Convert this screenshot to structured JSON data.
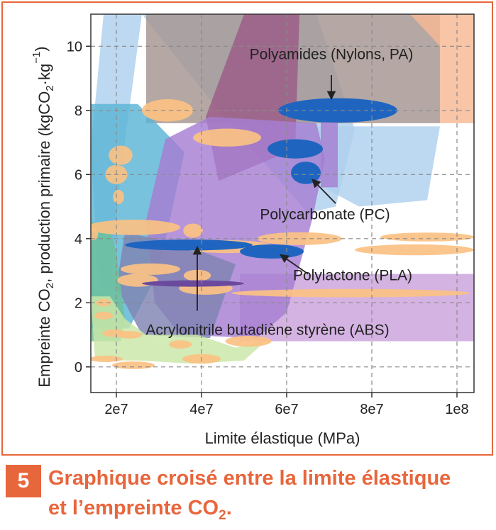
{
  "chart_data": {
    "type": "scatter",
    "xlabel": "Limite élastique (MPa)",
    "ylabel_parts": [
      "Empreinte CO",
      "2",
      ", production primaire (kgCO",
      "2",
      "·kg",
      "−1",
      ")"
    ],
    "xlim": [
      14000000,
      104000000
    ],
    "ylim": [
      -0.8,
      11.0
    ],
    "x_ticks": [
      {
        "value": 20000000,
        "label": "2e7"
      },
      {
        "value": 40000000,
        "label": "4e7"
      },
      {
        "value": 60000000,
        "label": "6e7"
      },
      {
        "value": 80000000,
        "label": "8e7"
      },
      {
        "value": 100000000,
        "label": "1e8"
      }
    ],
    "y_ticks": [
      {
        "value": 0,
        "label": "0"
      },
      {
        "value": 2,
        "label": "2"
      },
      {
        "value": 4,
        "label": "4"
      },
      {
        "value": 6,
        "label": "6"
      },
      {
        "value": 8,
        "label": "8"
      },
      {
        "value": 10,
        "label": "10"
      }
    ],
    "grid": true,
    "colors": {
      "sky": "#aed0ee",
      "teal": "#5bb5d5",
      "mauve": "#9b5b88",
      "taupe": "#a59590",
      "salmon": "#f6b894",
      "purple": "#a67ed2",
      "lavender": "#cba2dc",
      "green": "#6cc198",
      "lightgreen": "#c9e6a6",
      "orange": "#fbc183",
      "blue": "#1f65c0",
      "darkpurple": "#6b4a9e",
      "slate": "#7f84b2"
    },
    "regions": [
      {
        "color": "sky",
        "points": [
          [
            20000000,
            11.0
          ],
          [
            67000000,
            11.0
          ],
          [
            72000000,
            9.0
          ],
          [
            76000000,
            7.4
          ],
          [
            71500000,
            5.0
          ],
          [
            65000000,
            4.8
          ],
          [
            44000000,
            8.0
          ],
          [
            26000000,
            11.0
          ]
        ]
      },
      {
        "color": "sky",
        "points": [
          [
            17000000,
            11.0
          ],
          [
            26000000,
            11.0
          ],
          [
            21000000,
            6.0
          ],
          [
            18500000,
            2.5
          ],
          [
            16000000,
            2.5
          ],
          [
            14000000,
            6.8
          ]
        ]
      },
      {
        "color": "sky",
        "points": [
          [
            59000000,
            7.5
          ],
          [
            96000000,
            7.5
          ],
          [
            93000000,
            5.2
          ],
          [
            77000000,
            5.0
          ],
          [
            63000000,
            6.0
          ]
        ]
      },
      {
        "color": "taupe",
        "points": [
          [
            27000000,
            11.0
          ],
          [
            96000000,
            11.0
          ],
          [
            96000000,
            7.6
          ],
          [
            27000000,
            7.6
          ]
        ]
      },
      {
        "color": "mauve",
        "points": [
          [
            50000000,
            11.0
          ],
          [
            63000000,
            11.0
          ],
          [
            62000000,
            6.8
          ],
          [
            44000000,
            5.8
          ],
          [
            41000000,
            7.8
          ]
        ]
      },
      {
        "color": "salmon",
        "points": [
          [
            89000000,
            11.0
          ],
          [
            104000000,
            11.0
          ],
          [
            104000000,
            7.6
          ],
          [
            96000000,
            7.6
          ],
          [
            96000000,
            10.0
          ]
        ]
      },
      {
        "color": "lavender",
        "points": [
          [
            49000000,
            2.9
          ],
          [
            104000000,
            2.9
          ],
          [
            104000000,
            0.8
          ],
          [
            49000000,
            0.8
          ]
        ]
      },
      {
        "color": "teal",
        "points": [
          [
            14000000,
            8.2
          ],
          [
            25000000,
            8.2
          ],
          [
            36000000,
            6.7
          ],
          [
            30000000,
            3.0
          ],
          [
            23000000,
            1.2
          ],
          [
            14000000,
            1.2
          ]
        ]
      },
      {
        "color": "purple",
        "points": [
          [
            31500000,
            7.1
          ],
          [
            42000000,
            7.8
          ],
          [
            67000000,
            7.6
          ],
          [
            69000000,
            6.5
          ],
          [
            66000000,
            4.6
          ],
          [
            60000000,
            1.7
          ],
          [
            53000000,
            0.9
          ],
          [
            35000000,
            1.0
          ],
          [
            29000000,
            2.0
          ],
          [
            27000000,
            4.6
          ]
        ]
      },
      {
        "color": "purple",
        "points": [
          [
            68000000,
            7.9
          ],
          [
            72000000,
            7.9
          ],
          [
            72000000,
            5.6
          ],
          [
            68000000,
            5.6
          ]
        ]
      },
      {
        "color": "slate",
        "points": [
          [
            22000000,
            4.2
          ],
          [
            36000000,
            3.8
          ],
          [
            48000000,
            3.2
          ],
          [
            42000000,
            0.9
          ],
          [
            26000000,
            1.0
          ],
          [
            20000000,
            2.5
          ]
        ]
      },
      {
        "color": "green",
        "points": [
          [
            14000000,
            4.5
          ],
          [
            18000000,
            4.5
          ],
          [
            20000000,
            3.6
          ],
          [
            22000000,
            1.5
          ],
          [
            21000000,
            0.8
          ],
          [
            14000000,
            0.8
          ]
        ]
      },
      {
        "color": "lightgreen",
        "points": [
          [
            14000000,
            2.2
          ],
          [
            18500000,
            2.2
          ],
          [
            22000000,
            1.5
          ],
          [
            27000000,
            1.0
          ],
          [
            39000000,
            1.0
          ],
          [
            48000000,
            0.6
          ],
          [
            55000000,
            0.8
          ],
          [
            50000000,
            0.2
          ],
          [
            38000000,
            0.1
          ],
          [
            25000000,
            0.2
          ],
          [
            15000000,
            0.2
          ]
        ]
      }
    ],
    "series": [
      {
        "color": "orange",
        "ellipses": [
          [
            32000000,
            8.0,
            6000000,
            0.35
          ],
          [
            46000000,
            7.15,
            8000000,
            0.28
          ],
          [
            21000000,
            6.6,
            2800000,
            0.3
          ],
          [
            20000000,
            6.0,
            2600000,
            0.3
          ],
          [
            20500000,
            5.3,
            1300000,
            0.22
          ],
          [
            24000000,
            4.35,
            11000000,
            0.24
          ],
          [
            38000000,
            4.25,
            2300000,
            0.22
          ],
          [
            46000000,
            3.75,
            11000000,
            0.2
          ],
          [
            63000000,
            4.0,
            10000000,
            0.2
          ],
          [
            93000000,
            4.05,
            11000000,
            0.14
          ],
          [
            90000000,
            3.65,
            14000000,
            0.17
          ],
          [
            28000000,
            3.05,
            7000000,
            0.18
          ],
          [
            39000000,
            2.85,
            3200000,
            0.18
          ],
          [
            25000000,
            2.7,
            4800000,
            0.2
          ],
          [
            41000000,
            2.45,
            6300000,
            0.2
          ],
          [
            75000000,
            2.3,
            28000000,
            0.13
          ],
          [
            17000000,
            2.0,
            1800000,
            0.12
          ],
          [
            17000000,
            1.6,
            2200000,
            0.12
          ],
          [
            19500000,
            1.05,
            2800000,
            0.12
          ],
          [
            23000000,
            1.0,
            3000000,
            0.12
          ],
          [
            35000000,
            0.7,
            2700000,
            0.13
          ],
          [
            51000000,
            0.8,
            5400000,
            0.17
          ],
          [
            40000000,
            0.25,
            4500000,
            0.15
          ],
          [
            17500000,
            0.25,
            4000000,
            0.1
          ],
          [
            24000000,
            0.05,
            5000000,
            0.12
          ],
          [
            14500000,
            4.15,
            1200000,
            0.2
          ]
        ]
      },
      {
        "color": "darkpurple",
        "ellipses": [
          [
            38000000,
            2.6,
            12000000,
            0.1
          ]
        ]
      },
      {
        "color": "blue",
        "ellipses": [
          [
            72000000,
            8.0,
            14000000,
            0.38
          ],
          [
            62000000,
            6.8,
            6500000,
            0.3
          ],
          [
            64500000,
            6.05,
            3500000,
            0.35
          ],
          [
            37000000,
            3.8,
            15000000,
            0.17
          ],
          [
            56500000,
            3.6,
            7500000,
            0.22
          ]
        ]
      }
    ],
    "annotations": [
      {
        "text": "Polyamides (Nylons, PA)",
        "x": 70500000,
        "y": 9.6,
        "arrow_from": [
          70500000,
          9.1
        ],
        "arrow_to": [
          70500000,
          8.35
        ]
      },
      {
        "text": "Polycarbonate (PC)",
        "x": 69000000,
        "y": 4.6,
        "arrow_from": [
          71500000,
          5.1
        ],
        "arrow_to": [
          66000000,
          5.85
        ]
      },
      {
        "text": "Polylactone (PLA)",
        "x": 75500000,
        "y": 2.7,
        "arrow_from": [
          65000000,
          2.9
        ],
        "arrow_to": [
          58500000,
          3.5
        ]
      },
      {
        "text": "Acrylonitrile butadiène styrène (ABS)",
        "x": 55500000,
        "y": 1.0,
        "arrow_from": [
          39000000,
          1.75
        ],
        "arrow_to": [
          39000000,
          3.75
        ]
      }
    ]
  },
  "caption": {
    "number": "5",
    "line1": "Graphique croisé entre la limite élastique",
    "line2_main": "et l’empreinte CO",
    "line2_sub": "2",
    "line2_end": "."
  }
}
